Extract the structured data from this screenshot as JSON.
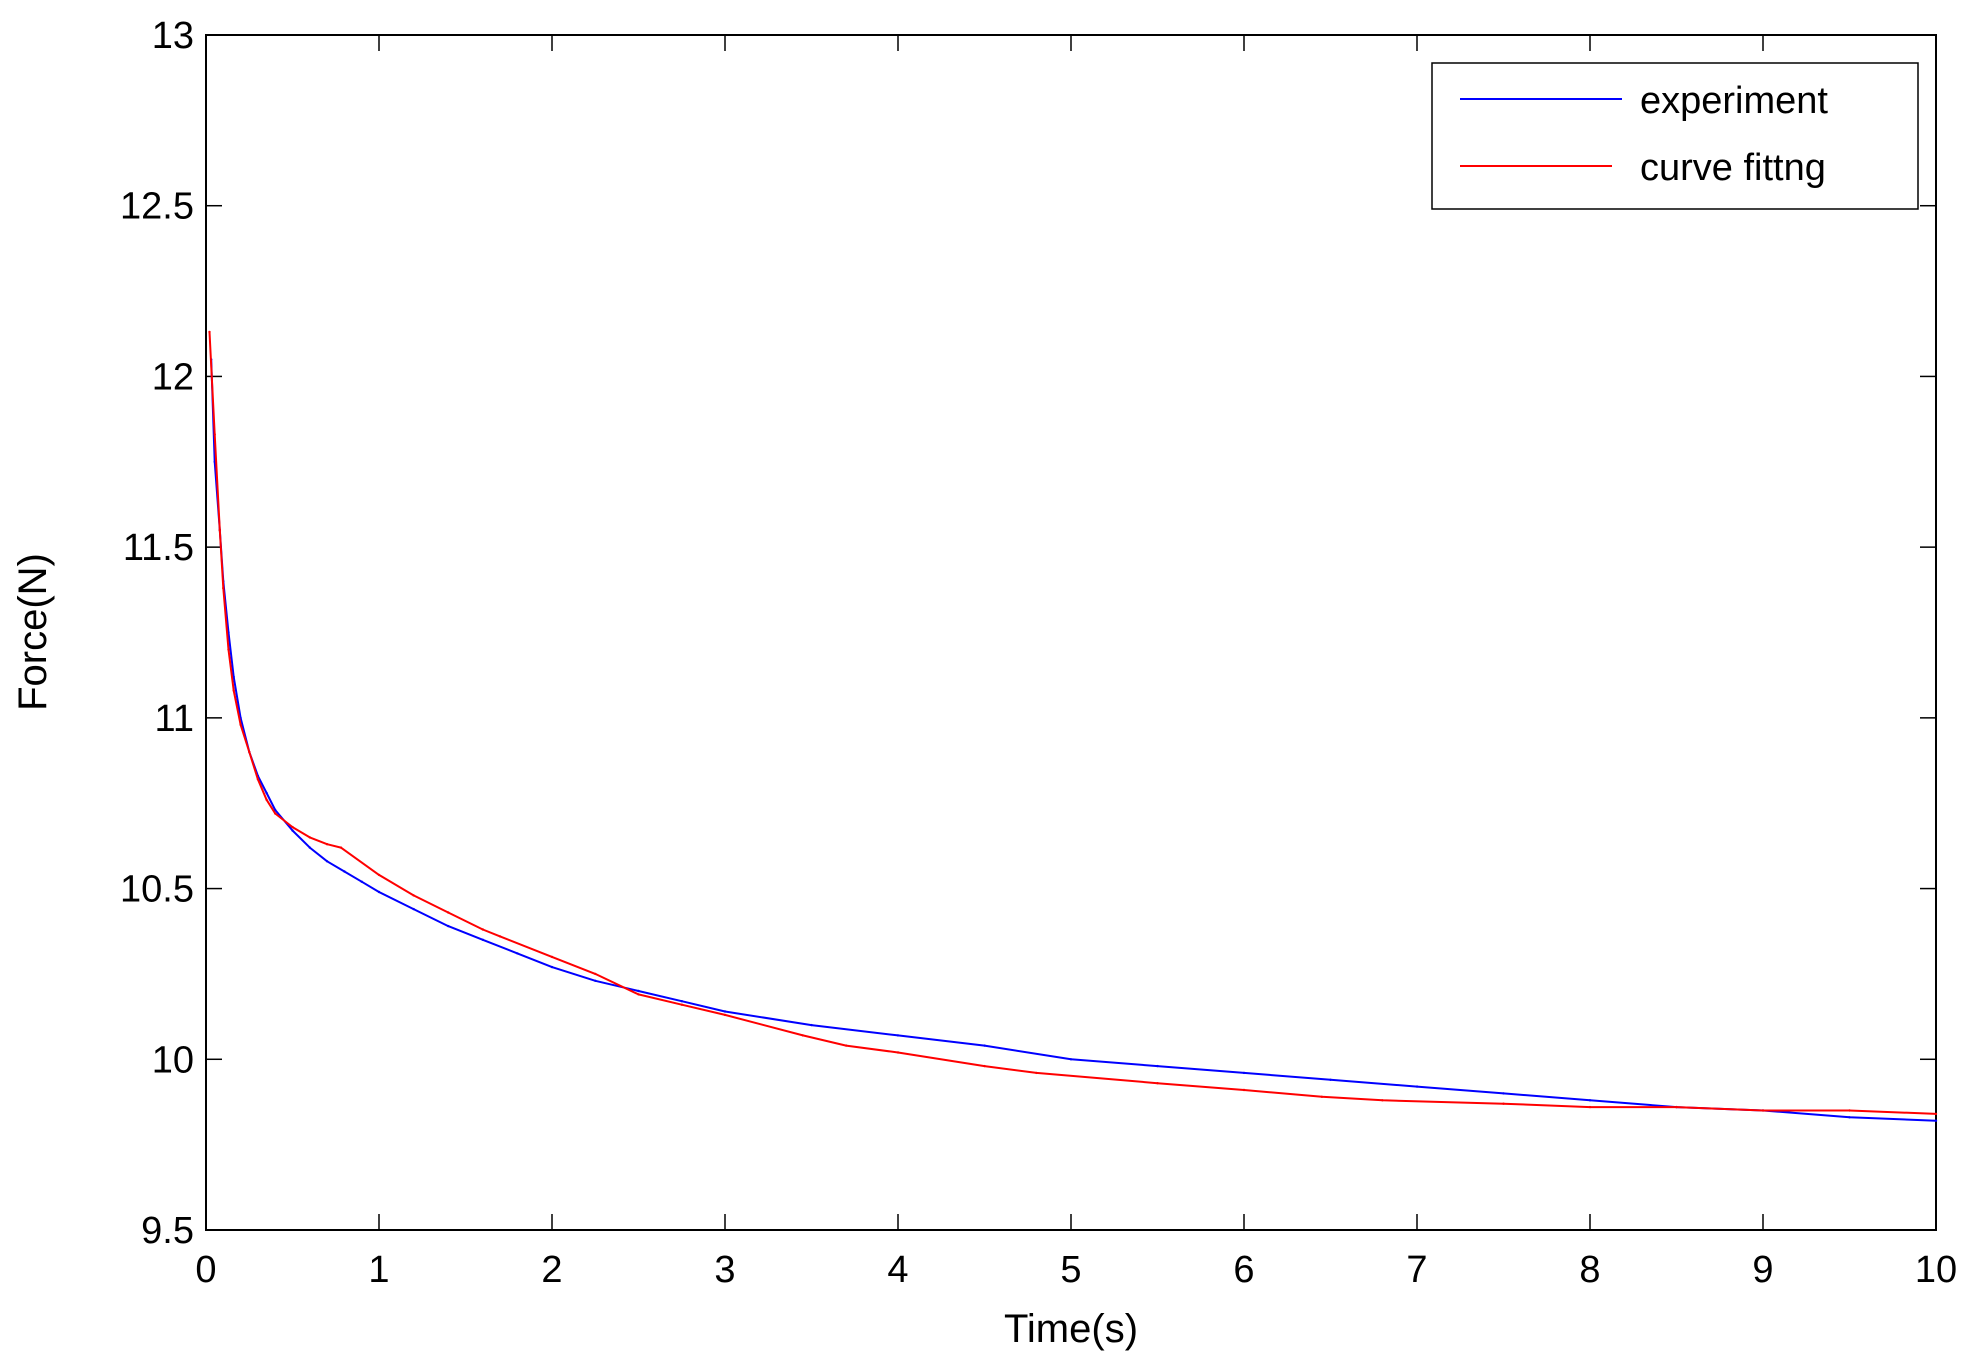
{
  "chart_data": {
    "type": "line",
    "title": "",
    "xlabel": "Time(s)",
    "ylabel": "Force(N)",
    "xlim": [
      0,
      10
    ],
    "ylim": [
      9.5,
      13
    ],
    "x_ticks": [
      "0",
      "1",
      "2",
      "3",
      "4",
      "5",
      "6",
      "7",
      "8",
      "9",
      "10"
    ],
    "y_ticks": [
      "9.5",
      "10",
      "10.5",
      "11",
      "11.5",
      "12",
      "12.5",
      "13"
    ],
    "grid": false,
    "legend_position": "top-right",
    "series": [
      {
        "name": "experiment",
        "color": "#0000ff",
        "x": [
          0.03,
          0.05,
          0.08,
          0.1,
          0.13,
          0.16,
          0.2,
          0.25,
          0.3,
          0.35,
          0.4,
          0.5,
          0.6,
          0.7,
          0.8,
          0.9,
          1.0,
          1.2,
          1.4,
          1.6,
          1.8,
          2.0,
          2.25,
          2.5,
          2.75,
          3.0,
          3.5,
          4.0,
          4.5,
          5.0,
          5.5,
          6.0,
          6.5,
          7.0,
          7.5,
          8.0,
          8.5,
          9.0,
          9.5,
          10.0
        ],
        "y": [
          12.05,
          11.75,
          11.55,
          11.4,
          11.25,
          11.12,
          11.0,
          10.9,
          10.83,
          10.78,
          10.73,
          10.67,
          10.62,
          10.58,
          10.55,
          10.52,
          10.49,
          10.44,
          10.39,
          10.35,
          10.31,
          10.27,
          10.23,
          10.2,
          10.17,
          10.14,
          10.1,
          10.07,
          10.04,
          10.0,
          9.98,
          9.96,
          9.94,
          9.92,
          9.9,
          9.88,
          9.86,
          9.85,
          9.83,
          9.82
        ]
      },
      {
        "name": "curve fittng",
        "color": "#ff0000",
        "x": [
          0.02,
          0.05,
          0.08,
          0.1,
          0.13,
          0.16,
          0.2,
          0.25,
          0.3,
          0.35,
          0.4,
          0.5,
          0.6,
          0.7,
          0.78,
          1.0,
          1.2,
          1.4,
          1.6,
          1.7,
          2.0,
          2.25,
          2.5,
          2.75,
          3.0,
          3.45,
          3.7,
          4.0,
          4.5,
          4.8,
          5.5,
          6.0,
          6.45,
          6.8,
          7.5,
          8.0,
          8.5,
          9.0,
          9.5,
          10.0
        ],
        "y": [
          12.13,
          11.83,
          11.55,
          11.38,
          11.2,
          11.08,
          10.98,
          10.9,
          10.82,
          10.76,
          10.72,
          10.68,
          10.65,
          10.63,
          10.62,
          10.54,
          10.48,
          10.43,
          10.38,
          10.36,
          10.3,
          10.25,
          10.19,
          10.16,
          10.13,
          10.07,
          10.04,
          10.02,
          9.98,
          9.96,
          9.93,
          9.91,
          9.89,
          9.88,
          9.87,
          9.86,
          9.86,
          9.85,
          9.85,
          9.84
        ]
      }
    ]
  }
}
